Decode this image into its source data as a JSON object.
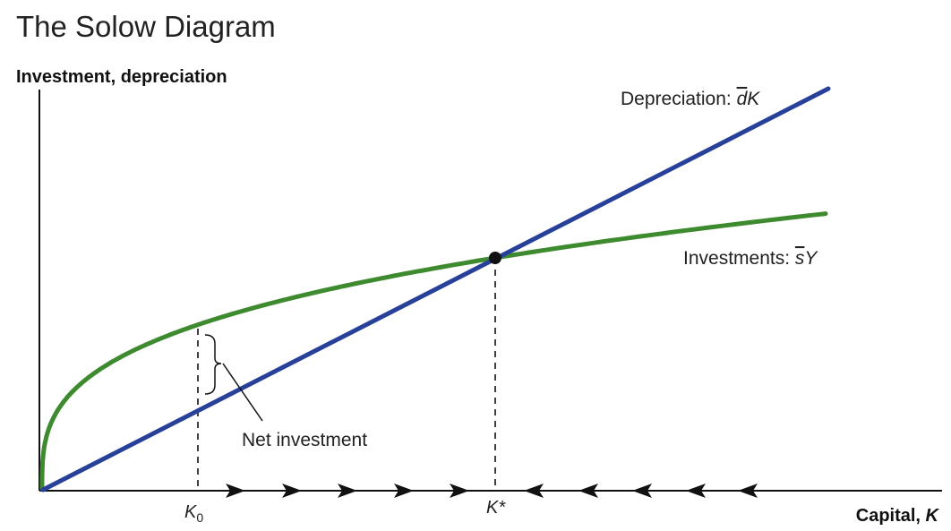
{
  "title": "The Solow Diagram",
  "axes": {
    "y_label": "Investment, depreciation",
    "x_label_prefix": "Capital, ",
    "x_label_var": "K"
  },
  "curves": {
    "depreciation": {
      "prefix": "Depreciation: ",
      "var_bar": "d",
      "var": "K",
      "color": "#27409a"
    },
    "investment": {
      "prefix": "Investments: ",
      "var_bar": "s",
      "var": "Y",
      "color": "#3e8a2f"
    }
  },
  "annotation": {
    "net_investment": "Net investment"
  },
  "ticks": {
    "k0": {
      "main": "K",
      "sub": "0"
    },
    "kstar": {
      "main": "K*"
    }
  },
  "steady_state_color": "#111111",
  "arrow_directions": {
    "left_of_kstar": "right",
    "right_of_kstar": "left"
  }
}
